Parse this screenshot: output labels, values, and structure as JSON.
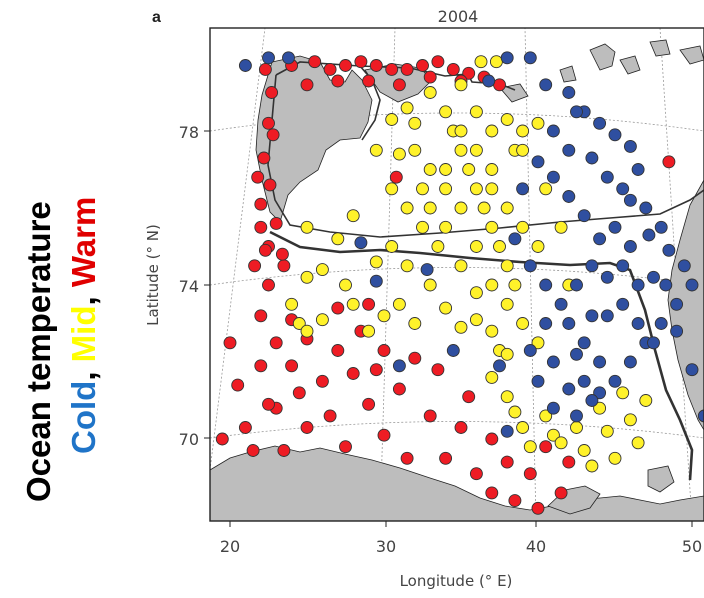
{
  "figure": {
    "panel_label": "a",
    "title": "2004",
    "side_label_line1": "Ocean temperature",
    "side_label_line2": {
      "cold": "Cold",
      "sep1": ", ",
      "mid": "Mid",
      "sep2": ", ",
      "warm": "Warm"
    }
  },
  "colors": {
    "cold": "#2f4fa0",
    "mid": "#fff22a",
    "warm": "#ee1c24",
    "land": "#bdbdbd",
    "side_cold": "#1f74c8",
    "side_mid": "#ffff00",
    "side_warm": "#e00000"
  },
  "chart_data": {
    "type": "scatter",
    "title": "2004",
    "xlabel": "Longitude (° E)",
    "ylabel": "Latitude (° N)",
    "xlim": [
      18.5,
      52
    ],
    "ylim": [
      68,
      80
    ],
    "xticks": [
      "20",
      "30",
      "40",
      "50"
    ],
    "yticks": [
      "70",
      "74",
      "78"
    ],
    "legend": [
      "Cold",
      "Mid",
      "Warm"
    ],
    "series": [
      {
        "name": "Warm",
        "points": [
          [
            20,
            72.5
          ],
          [
            20.5,
            71.4
          ],
          [
            21,
            70.3
          ],
          [
            21.5,
            69.7
          ],
          [
            22,
            71.9
          ],
          [
            22,
            73.2
          ],
          [
            23,
            72.5
          ],
          [
            23,
            70.8
          ],
          [
            23.5,
            69.7
          ],
          [
            24,
            73.1
          ],
          [
            24,
            71.9
          ],
          [
            24.5,
            71.2
          ],
          [
            25,
            70.3
          ],
          [
            25,
            72.6
          ],
          [
            26,
            71.5
          ],
          [
            26.5,
            70.6
          ],
          [
            27,
            72.3
          ],
          [
            27.5,
            69.8
          ],
          [
            28,
            71.7
          ],
          [
            28.5,
            72.8
          ],
          [
            29,
            70.9
          ],
          [
            29.5,
            71.8
          ],
          [
            30,
            72.3
          ],
          [
            30,
            70.1
          ],
          [
            31,
            71.3
          ],
          [
            31.5,
            69.5
          ],
          [
            32,
            72.1
          ],
          [
            33,
            70.6
          ],
          [
            33.5,
            71.8
          ],
          [
            34,
            69.5
          ],
          [
            35,
            70.3
          ],
          [
            35.5,
            71.1
          ],
          [
            36,
            69.1
          ],
          [
            37,
            70.0
          ],
          [
            37,
            68.6
          ],
          [
            38,
            69.4
          ],
          [
            38.5,
            68.4
          ],
          [
            39.5,
            69.1
          ],
          [
            40,
            68.2
          ],
          [
            40.5,
            69.8
          ],
          [
            41.5,
            68.6
          ],
          [
            42,
            69.4
          ],
          [
            19.5,
            70.0
          ],
          [
            22.5,
            70.9
          ],
          [
            27,
            73.4
          ],
          [
            29,
            73.5
          ],
          [
            22.5,
            74.0
          ],
          [
            23.5,
            74.5
          ],
          [
            22.5,
            75.0
          ],
          [
            22,
            76.1
          ],
          [
            22.2,
            77.3
          ],
          [
            22.5,
            78.2
          ],
          [
            22.7,
            79.0
          ],
          [
            22.3,
            79.6
          ],
          [
            24,
            79.7
          ],
          [
            25.5,
            79.8
          ],
          [
            26.5,
            79.6
          ],
          [
            27.5,
            79.7
          ],
          [
            28.5,
            79.8
          ],
          [
            29.5,
            79.7
          ],
          [
            30.5,
            79.6
          ],
          [
            31.5,
            79.6
          ],
          [
            32.5,
            79.7
          ],
          [
            33.5,
            79.8
          ],
          [
            34.5,
            79.6
          ],
          [
            35.5,
            79.5
          ],
          [
            36.5,
            79.4
          ],
          [
            21.8,
            76.8
          ],
          [
            22.8,
            77.9
          ],
          [
            22.0,
            75.5
          ],
          [
            22.3,
            74.9
          ],
          [
            22.6,
            76.6
          ],
          [
            23.0,
            75.6
          ],
          [
            23.4,
            74.8
          ],
          [
            21.6,
            74.5
          ],
          [
            25,
            79.2
          ],
          [
            27,
            79.3
          ],
          [
            29,
            79.3
          ],
          [
            31,
            79.2
          ],
          [
            33,
            79.4
          ],
          [
            35,
            79.3
          ],
          [
            37.5,
            79.2
          ],
          [
            30.8,
            76.8
          ],
          [
            48.5,
            77.2
          ]
        ]
      },
      {
        "name": "Mid",
        "points": [
          [
            24,
            73.5
          ],
          [
            24.5,
            73.0
          ],
          [
            25,
            74.2
          ],
          [
            26,
            73.1
          ],
          [
            28,
            73.5
          ],
          [
            30,
            73.2
          ],
          [
            32,
            73.0
          ],
          [
            34,
            73.4
          ],
          [
            35,
            72.9
          ],
          [
            36,
            73.1
          ],
          [
            37,
            72.8
          ],
          [
            37.5,
            72.3
          ],
          [
            37,
            71.6
          ],
          [
            38,
            71.1
          ],
          [
            38.5,
            70.7
          ],
          [
            39,
            70.3
          ],
          [
            39.5,
            69.8
          ],
          [
            40.5,
            70.6
          ],
          [
            41,
            70.1
          ],
          [
            41.5,
            69.9
          ],
          [
            42.5,
            70.3
          ],
          [
            43,
            69.7
          ],
          [
            43.5,
            69.3
          ],
          [
            44,
            70.8
          ],
          [
            44.5,
            70.2
          ],
          [
            45,
            69.5
          ],
          [
            45.5,
            71.2
          ],
          [
            46,
            70.5
          ],
          [
            46.5,
            69.9
          ],
          [
            47,
            71.0
          ],
          [
            33,
            74.0
          ],
          [
            33.5,
            75.0
          ],
          [
            33,
            76.0
          ],
          [
            33,
            77.0
          ],
          [
            32,
            77.5
          ],
          [
            31,
            77.4
          ],
          [
            32,
            78.2
          ],
          [
            33,
            79.0
          ],
          [
            34,
            78.5
          ],
          [
            34.5,
            78.0
          ],
          [
            35,
            77.5
          ],
          [
            35.5,
            77.0
          ],
          [
            36,
            76.5
          ],
          [
            36.5,
            76.0
          ],
          [
            37,
            75.5
          ],
          [
            37.5,
            75.0
          ],
          [
            38,
            74.5
          ],
          [
            38.5,
            74.0
          ],
          [
            34,
            77.0
          ],
          [
            35,
            76.0
          ],
          [
            36,
            75.0
          ],
          [
            37,
            74.0
          ],
          [
            38,
            73.5
          ],
          [
            39,
            73.0
          ],
          [
            40,
            72.5
          ],
          [
            34,
            75.5
          ],
          [
            35,
            74.5
          ],
          [
            36,
            73.8
          ],
          [
            37,
            76.5
          ],
          [
            38,
            76.0
          ],
          [
            39,
            75.5
          ],
          [
            40,
            75.0
          ],
          [
            34,
            76.5
          ],
          [
            35,
            78.0
          ],
          [
            36,
            78.5
          ],
          [
            37,
            78.0
          ],
          [
            38,
            78.3
          ],
          [
            39,
            78.0
          ],
          [
            40,
            78.2
          ],
          [
            38.5,
            77.5
          ],
          [
            37,
            77.0
          ],
          [
            36,
            77.5
          ],
          [
            35,
            79.2
          ],
          [
            36.3,
            79.8
          ],
          [
            37.3,
            79.8
          ],
          [
            31.5,
            78.6
          ],
          [
            30.5,
            78.3
          ],
          [
            29.5,
            77.5
          ],
          [
            30.5,
            76.5
          ],
          [
            31.5,
            76.0
          ],
          [
            32.5,
            75.5
          ],
          [
            28,
            75.8
          ],
          [
            27,
            75.2
          ],
          [
            25,
            75.5
          ],
          [
            29.5,
            74.6
          ],
          [
            30.5,
            75.0
          ],
          [
            31.5,
            74.5
          ],
          [
            32.5,
            76.5
          ],
          [
            31,
            73.5
          ],
          [
            29,
            72.8
          ],
          [
            25,
            72.8
          ],
          [
            26,
            74.4
          ],
          [
            27.5,
            74.0
          ],
          [
            39,
            77.5
          ],
          [
            40.5,
            76.5
          ],
          [
            41.5,
            75.5
          ],
          [
            42,
            74.0
          ],
          [
            38,
            72.2
          ]
        ]
      },
      {
        "name": "Cold",
        "points": [
          [
            21,
            79.7
          ],
          [
            22.5,
            79.9
          ],
          [
            23.8,
            79.9
          ],
          [
            38,
            79.9
          ],
          [
            39.5,
            79.9
          ],
          [
            40.5,
            79.2
          ],
          [
            42,
            79.0
          ],
          [
            43,
            78.5
          ],
          [
            44,
            78.2
          ],
          [
            45,
            77.9
          ],
          [
            46,
            77.6
          ],
          [
            46.5,
            77.0
          ],
          [
            45.5,
            76.5
          ],
          [
            47,
            76.0
          ],
          [
            48,
            75.5
          ],
          [
            48.5,
            74.9
          ],
          [
            49.5,
            74.5
          ],
          [
            50,
            74.0
          ],
          [
            49,
            73.5
          ],
          [
            48,
            73.0
          ],
          [
            47,
            72.5
          ],
          [
            46,
            72.0
          ],
          [
            45,
            71.5
          ],
          [
            44,
            72.0
          ],
          [
            43,
            72.5
          ],
          [
            42,
            73.0
          ],
          [
            41,
            72.0
          ],
          [
            40,
            71.5
          ],
          [
            39.5,
            72.3
          ],
          [
            40.5,
            73.0
          ],
          [
            41.5,
            73.5
          ],
          [
            42.5,
            74.0
          ],
          [
            43.5,
            74.5
          ],
          [
            44.5,
            74.2
          ],
          [
            45.5,
            73.5
          ],
          [
            46.5,
            73.0
          ],
          [
            47.5,
            72.5
          ],
          [
            44,
            71.2
          ],
          [
            43,
            71.5
          ],
          [
            42,
            71.3
          ],
          [
            41,
            70.8
          ],
          [
            42.5,
            70.6
          ],
          [
            43.5,
            71.0
          ],
          [
            46,
            75.0
          ],
          [
            45,
            75.5
          ],
          [
            44,
            75.2
          ],
          [
            43,
            75.8
          ],
          [
            42,
            76.3
          ],
          [
            41,
            76.8
          ],
          [
            43.5,
            77.3
          ],
          [
            44.5,
            76.8
          ],
          [
            42,
            77.5
          ],
          [
            41,
            78.0
          ],
          [
            42.5,
            78.5
          ],
          [
            40,
            77.2
          ],
          [
            39,
            76.5
          ],
          [
            38.5,
            75.2
          ],
          [
            39.5,
            74.5
          ],
          [
            40.5,
            74.0
          ],
          [
            47.5,
            74.2
          ],
          [
            46.5,
            74.0
          ],
          [
            45.5,
            74.5
          ],
          [
            44.5,
            73.2
          ],
          [
            43.5,
            73.2
          ],
          [
            42.5,
            72.2
          ],
          [
            46,
            76.2
          ],
          [
            47.2,
            75.3
          ],
          [
            48.3,
            74.0
          ],
          [
            49,
            72.8
          ],
          [
            50,
            71.8
          ],
          [
            50.8,
            70.6
          ],
          [
            36.8,
            79.3
          ],
          [
            29.5,
            74.1
          ],
          [
            28.5,
            75.1
          ],
          [
            32.8,
            74.4
          ],
          [
            31,
            71.9
          ],
          [
            34.5,
            72.3
          ],
          [
            37.5,
            71.9
          ],
          [
            38,
            70.2
          ]
        ]
      }
    ]
  }
}
